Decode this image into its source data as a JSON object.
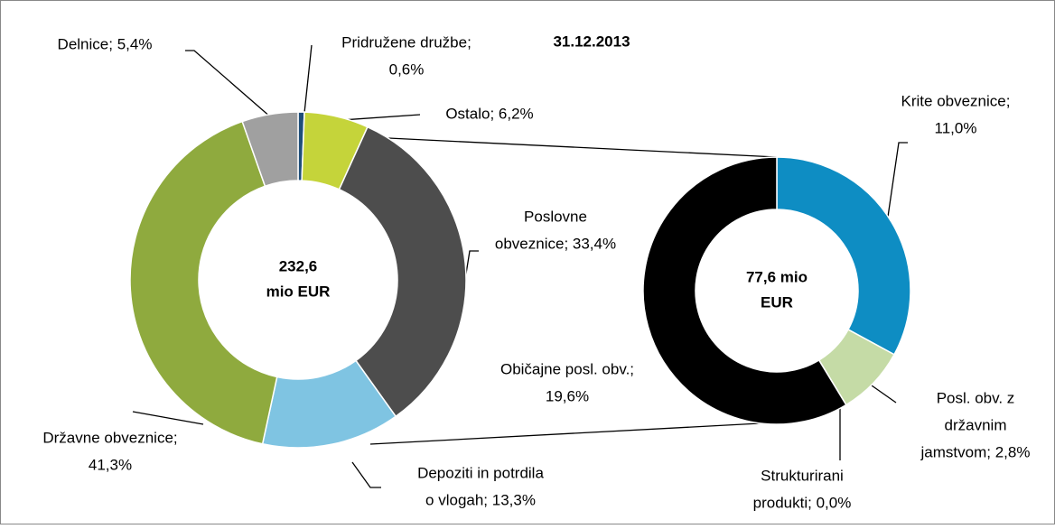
{
  "chart_data": [
    {
      "type": "pie",
      "donut": true,
      "title": "31.12.2013",
      "center_label": [
        "232,6",
        "mio EUR"
      ],
      "values": [
        0.6,
        6.2,
        33.4,
        13.3,
        41.3,
        5.4
      ],
      "value_labels": [
        [
          "Pridružene družbe;",
          "0,6%"
        ],
        [
          "Ostalo; 6,2%"
        ],
        [
          "Poslovne",
          "obveznice; 33,4%"
        ],
        [
          "Depoziti in potrdila",
          "o vlogah; 13,3%"
        ],
        [
          "Državne obveznice;",
          "41,3%"
        ],
        [
          "Delnice; 5,4%"
        ]
      ],
      "colors": [
        "#1f4e79",
        "#c5d43a",
        "#4d4d4d",
        "#7fc4e2",
        "#8faa3e",
        "#a0a0a0"
      ]
    },
    {
      "type": "pie",
      "donut": true,
      "center_label": [
        "77,6 mio",
        "EUR"
      ],
      "values": [
        11.0,
        2.8,
        0.0,
        19.6
      ],
      "value_labels": [
        [
          "Krite obveznice;",
          "11,0%"
        ],
        [
          "Posl. obv. z",
          "državnim",
          "jamstvom; 2,8%"
        ],
        [
          "Strukturirani",
          "produkti; 0,0%"
        ],
        [
          "Običajne posl. obv.;",
          "19,6%"
        ]
      ],
      "colors": [
        "#0e8dc3",
        "#c5dba6",
        "#bbbbbb",
        "#000000"
      ]
    }
  ]
}
